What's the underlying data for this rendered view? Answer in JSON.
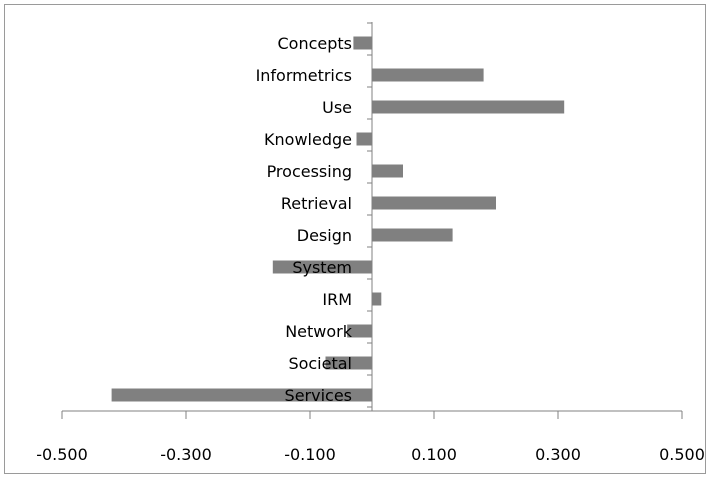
{
  "chart_data": {
    "type": "bar",
    "orientation": "horizontal",
    "categories": [
      "Concepts",
      "Informetrics",
      "Use",
      "Knowledge",
      "Processing",
      "Retrieval",
      "Design",
      "System",
      "IRM",
      "Network",
      "Societal",
      "Services"
    ],
    "values": [
      -0.03,
      0.18,
      0.31,
      -0.025,
      0.05,
      0.2,
      0.13,
      -0.16,
      0.015,
      -0.04,
      -0.075,
      -0.42
    ],
    "title": "",
    "xlabel": "",
    "ylabel": "",
    "xlim": [
      -0.5,
      0.5
    ],
    "xticks": [
      -0.5,
      -0.3,
      -0.1,
      0.1,
      0.3,
      0.5
    ],
    "tick_labels": [
      "-0.500",
      "-0.300",
      "-0.100",
      "0.100",
      "0.300",
      "0.500"
    ],
    "bar_color": "#808080",
    "grid": false,
    "legend": "none"
  }
}
